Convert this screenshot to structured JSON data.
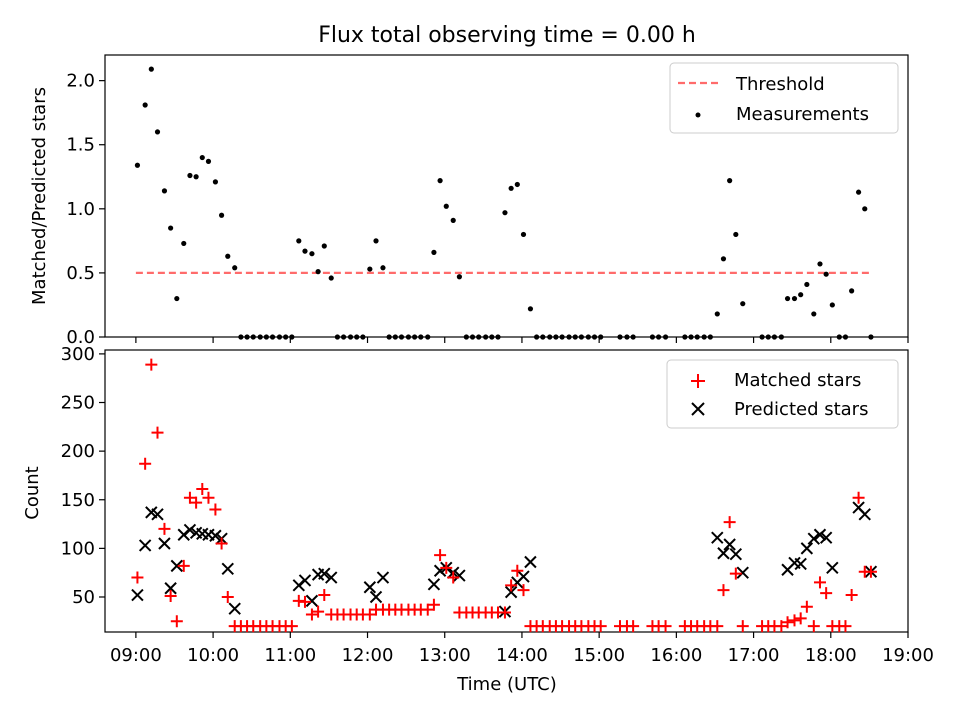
{
  "chart_data": [
    {
      "type": "scatter",
      "title": "Flux total observing time = 0.00 h",
      "xlabel": "",
      "ylabel": "Matched/Predicted stars",
      "xlim": [
        8.6,
        19.0
      ],
      "ylim": [
        0,
        2.2
      ],
      "yticks": [
        0.0,
        0.5,
        1.0,
        1.5,
        2.0
      ],
      "ytick_labels": [
        "0.0",
        "0.5",
        "1.0",
        "1.5",
        "2.0"
      ],
      "legend_position": "upper right",
      "threshold": {
        "name": "Threshold",
        "value": 0.5,
        "x": [
          9.0,
          18.5
        ],
        "color": "#ff6b6b"
      },
      "series": [
        {
          "name": "Measurements",
          "color": "#000000",
          "points": [
            [
              9.02,
              1.34
            ],
            [
              9.12,
              1.81
            ],
            [
              9.2,
              2.09
            ],
            [
              9.28,
              1.6
            ],
            [
              9.37,
              1.14
            ],
            [
              9.45,
              0.85
            ],
            [
              9.53,
              0.3
            ],
            [
              9.62,
              0.73
            ],
            [
              9.7,
              1.26
            ],
            [
              9.78,
              1.25
            ],
            [
              9.86,
              1.4
            ],
            [
              9.94,
              1.37
            ],
            [
              10.03,
              1.21
            ],
            [
              10.11,
              0.95
            ],
            [
              10.19,
              0.63
            ],
            [
              10.28,
              0.54
            ],
            [
              10.36,
              0
            ],
            [
              10.44,
              0
            ],
            [
              10.52,
              0
            ],
            [
              10.61,
              0
            ],
            [
              10.69,
              0
            ],
            [
              10.77,
              0
            ],
            [
              10.86,
              0
            ],
            [
              10.94,
              0
            ],
            [
              11.02,
              0
            ],
            [
              11.11,
              0.75
            ],
            [
              11.19,
              0.67
            ],
            [
              11.28,
              0.65
            ],
            [
              11.36,
              0.51
            ],
            [
              11.44,
              0.71
            ],
            [
              11.53,
              0.46
            ],
            [
              11.61,
              0
            ],
            [
              11.69,
              0
            ],
            [
              11.78,
              0
            ],
            [
              11.86,
              0
            ],
            [
              11.94,
              0
            ],
            [
              12.03,
              0.53
            ],
            [
              12.11,
              0.75
            ],
            [
              12.2,
              0.54
            ],
            [
              12.28,
              0
            ],
            [
              12.36,
              0
            ],
            [
              12.44,
              0
            ],
            [
              12.53,
              0
            ],
            [
              12.61,
              0
            ],
            [
              12.69,
              0
            ],
            [
              12.78,
              0
            ],
            [
              12.86,
              0.66
            ],
            [
              12.94,
              1.22
            ],
            [
              13.02,
              1.02
            ],
            [
              13.11,
              0.91
            ],
            [
              13.19,
              0.47
            ],
            [
              13.28,
              0
            ],
            [
              13.36,
              0
            ],
            [
              13.44,
              0
            ],
            [
              13.53,
              0
            ],
            [
              13.61,
              0
            ],
            [
              13.69,
              0
            ],
            [
              13.78,
              0.97
            ],
            [
              13.86,
              1.16
            ],
            [
              13.94,
              1.19
            ],
            [
              14.02,
              0.8
            ],
            [
              14.11,
              0.22
            ],
            [
              14.19,
              0
            ],
            [
              14.27,
              0
            ],
            [
              14.36,
              0
            ],
            [
              14.44,
              0
            ],
            [
              14.52,
              0
            ],
            [
              14.61,
              0
            ],
            [
              14.69,
              0
            ],
            [
              14.77,
              0
            ],
            [
              14.86,
              0
            ],
            [
              14.94,
              0
            ],
            [
              15.02,
              0
            ],
            [
              15.27,
              0
            ],
            [
              15.36,
              0
            ],
            [
              15.44,
              0
            ],
            [
              15.69,
              0
            ],
            [
              15.77,
              0
            ],
            [
              15.86,
              0
            ],
            [
              16.11,
              0
            ],
            [
              16.19,
              0
            ],
            [
              16.27,
              0
            ],
            [
              16.36,
              0
            ],
            [
              16.44,
              0
            ],
            [
              16.53,
              0.18
            ],
            [
              16.61,
              0.61
            ],
            [
              16.69,
              1.22
            ],
            [
              16.77,
              0.8
            ],
            [
              16.86,
              0.26
            ],
            [
              17.11,
              0
            ],
            [
              17.19,
              0
            ],
            [
              17.27,
              0
            ],
            [
              17.36,
              0
            ],
            [
              17.44,
              0.3
            ],
            [
              17.53,
              0.3
            ],
            [
              17.61,
              0.33
            ],
            [
              17.69,
              0.41
            ],
            [
              17.78,
              0.18
            ],
            [
              17.86,
              0.57
            ],
            [
              17.94,
              0.49
            ],
            [
              18.02,
              0.25
            ],
            [
              18.11,
              0
            ],
            [
              18.19,
              0
            ],
            [
              18.27,
              0.36
            ],
            [
              18.36,
              1.13
            ],
            [
              18.44,
              1.0
            ],
            [
              18.52,
              0
            ]
          ]
        }
      ]
    },
    {
      "type": "scatter",
      "title": "",
      "xlabel": "Time (UTC)",
      "ylabel": "Count",
      "xlim": [
        8.6,
        19.0
      ],
      "ylim": [
        14,
        304
      ],
      "yticks": [
        50,
        100,
        150,
        200,
        250,
        300
      ],
      "ytick_labels": [
        "50",
        "100",
        "150",
        "200",
        "250",
        "300"
      ],
      "xticks": [
        9,
        10,
        11,
        12,
        13,
        14,
        15,
        16,
        17,
        18,
        19
      ],
      "xtick_labels": [
        "09:00",
        "10:00",
        "11:00",
        "12:00",
        "13:00",
        "14:00",
        "15:00",
        "16:00",
        "17:00",
        "18:00",
        "19:00"
      ],
      "legend_position": "upper right",
      "series": [
        {
          "name": "Matched stars",
          "marker": "plus",
          "color": "#ff0000",
          "points": [
            [
              9.02,
              70
            ],
            [
              9.12,
              187
            ],
            [
              9.2,
              289
            ],
            [
              9.28,
              219
            ],
            [
              9.37,
              120
            ],
            [
              9.45,
              51
            ],
            [
              9.53,
              25
            ],
            [
              9.62,
              82
            ],
            [
              9.7,
              152
            ],
            [
              9.78,
              147
            ],
            [
              9.86,
              161
            ],
            [
              9.94,
              152
            ],
            [
              10.03,
              140
            ],
            [
              10.11,
              105
            ],
            [
              10.19,
              50
            ],
            [
              10.28,
              20
            ],
            [
              10.36,
              20
            ],
            [
              10.44,
              20
            ],
            [
              10.52,
              20
            ],
            [
              10.61,
              20
            ],
            [
              10.69,
              20
            ],
            [
              10.77,
              20
            ],
            [
              10.86,
              20
            ],
            [
              10.94,
              20
            ],
            [
              11.02,
              20
            ],
            [
              11.11,
              46
            ],
            [
              11.19,
              45
            ],
            [
              11.28,
              32
            ],
            [
              11.36,
              35
            ],
            [
              11.44,
              52
            ],
            [
              11.53,
              32
            ],
            [
              11.61,
              32
            ],
            [
              11.69,
              32
            ],
            [
              11.78,
              32
            ],
            [
              11.86,
              32
            ],
            [
              11.94,
              32
            ],
            [
              12.03,
              32
            ],
            [
              12.11,
              37
            ],
            [
              12.2,
              37
            ],
            [
              12.28,
              37
            ],
            [
              12.36,
              37
            ],
            [
              12.44,
              37
            ],
            [
              12.53,
              37
            ],
            [
              12.61,
              37
            ],
            [
              12.69,
              37
            ],
            [
              12.78,
              37
            ],
            [
              12.86,
              42
            ],
            [
              12.94,
              93
            ],
            [
              13.02,
              80
            ],
            [
              13.11,
              70
            ],
            [
              13.19,
              34
            ],
            [
              13.28,
              34
            ],
            [
              13.36,
              34
            ],
            [
              13.44,
              34
            ],
            [
              13.53,
              34
            ],
            [
              13.61,
              34
            ],
            [
              13.69,
              34
            ],
            [
              13.78,
              34
            ],
            [
              13.86,
              62
            ],
            [
              13.94,
              77
            ],
            [
              14.02,
              57
            ],
            [
              14.11,
              20
            ],
            [
              14.19,
              20
            ],
            [
              14.27,
              20
            ],
            [
              14.36,
              20
            ],
            [
              14.44,
              20
            ],
            [
              14.52,
              20
            ],
            [
              14.61,
              20
            ],
            [
              14.69,
              20
            ],
            [
              14.77,
              20
            ],
            [
              14.86,
              20
            ],
            [
              14.94,
              20
            ],
            [
              15.02,
              20
            ],
            [
              15.27,
              20
            ],
            [
              15.36,
              20
            ],
            [
              15.44,
              20
            ],
            [
              15.69,
              20
            ],
            [
              15.77,
              20
            ],
            [
              15.86,
              20
            ],
            [
              16.11,
              20
            ],
            [
              16.19,
              20
            ],
            [
              16.27,
              20
            ],
            [
              16.36,
              20
            ],
            [
              16.44,
              20
            ],
            [
              16.53,
              20
            ],
            [
              16.61,
              57
            ],
            [
              16.69,
              127
            ],
            [
              16.77,
              74
            ],
            [
              16.86,
              20
            ],
            [
              17.11,
              20
            ],
            [
              17.19,
              20
            ],
            [
              17.27,
              20
            ],
            [
              17.36,
              20
            ],
            [
              17.44,
              24
            ],
            [
              17.53,
              26
            ],
            [
              17.61,
              28
            ],
            [
              17.69,
              40
            ],
            [
              17.78,
              20
            ],
            [
              17.86,
              65
            ],
            [
              17.94,
              54
            ],
            [
              18.02,
              20
            ],
            [
              18.11,
              20
            ],
            [
              18.19,
              20
            ],
            [
              18.27,
              52
            ],
            [
              18.36,
              152
            ],
            [
              18.44,
              76
            ],
            [
              18.52,
              76
            ]
          ]
        },
        {
          "name": "Predicted stars",
          "marker": "x",
          "color": "#000000",
          "points": [
            [
              9.02,
              52
            ],
            [
              9.12,
              103
            ],
            [
              9.2,
              137
            ],
            [
              9.28,
              135
            ],
            [
              9.37,
              105
            ],
            [
              9.45,
              59
            ],
            [
              9.53,
              82
            ],
            [
              9.62,
              114
            ],
            [
              9.7,
              119
            ],
            [
              9.78,
              116
            ],
            [
              9.86,
              115
            ],
            [
              9.94,
              114
            ],
            [
              10.03,
              113
            ],
            [
              10.11,
              110
            ],
            [
              10.19,
              79
            ],
            [
              10.28,
              38
            ],
            [
              11.11,
              62
            ],
            [
              11.19,
              67
            ],
            [
              11.28,
              46
            ],
            [
              11.36,
              73
            ],
            [
              11.44,
              74
            ],
            [
              11.53,
              70
            ],
            [
              12.03,
              60
            ],
            [
              12.11,
              50
            ],
            [
              12.2,
              70
            ],
            [
              12.86,
              63
            ],
            [
              12.94,
              77
            ],
            [
              13.02,
              80
            ],
            [
              13.11,
              75
            ],
            [
              13.19,
              72
            ],
            [
              13.78,
              35
            ],
            [
              13.86,
              55
            ],
            [
              13.94,
              65
            ],
            [
              14.02,
              71
            ],
            [
              14.11,
              86
            ],
            [
              16.53,
              111
            ],
            [
              16.61,
              95
            ],
            [
              16.69,
              104
            ],
            [
              16.77,
              94
            ],
            [
              16.86,
              75
            ],
            [
              17.44,
              78
            ],
            [
              17.53,
              85
            ],
            [
              17.61,
              84
            ],
            [
              17.69,
              100
            ],
            [
              17.78,
              110
            ],
            [
              17.86,
              114
            ],
            [
              17.94,
              111
            ],
            [
              18.02,
              80
            ],
            [
              18.36,
              142
            ],
            [
              18.44,
              135
            ],
            [
              18.52,
              76
            ]
          ]
        }
      ]
    }
  ]
}
